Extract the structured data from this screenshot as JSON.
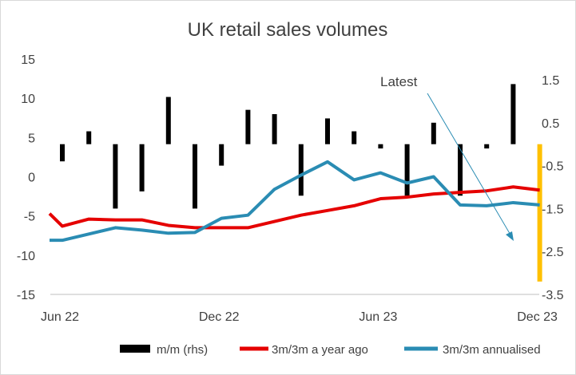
{
  "chart_data": {
    "type": "bar+line",
    "title": "UK retail sales volumes",
    "x_ticks": [
      "Jun 22",
      "Dec 22",
      "Jun 23",
      "Dec 23"
    ],
    "months": [
      "Jun 22",
      "Jul 22",
      "Aug 22",
      "Sep 22",
      "Oct 22",
      "Nov 22",
      "Dec 22",
      "Jan 23",
      "Feb 23",
      "Mar 23",
      "Apr 23",
      "May 23",
      "Jun 23",
      "Jul 23",
      "Aug 23",
      "Sep 23",
      "Oct 23",
      "Nov 23",
      "Dec 23"
    ],
    "left_axis": {
      "ylim": [
        -15,
        15
      ],
      "ticks": [
        -15,
        -10,
        -5,
        0,
        5,
        10,
        15
      ]
    },
    "right_axis": {
      "ylim": [
        -3.5,
        2.0
      ],
      "ticks": [
        -3.5,
        -2.5,
        -1.5,
        -0.5,
        0.5,
        1.5
      ]
    },
    "series": [
      {
        "name": "m/m (rhs)",
        "kind": "bar",
        "axis": "right",
        "color": "#000000",
        "values": [
          -0.4,
          0.3,
          -1.5,
          -1.1,
          1.1,
          -1.5,
          -0.5,
          0.8,
          0.7,
          -1.2,
          0.6,
          0.3,
          -0.1,
          -1.2,
          0.5,
          -1.2,
          -0.1,
          1.4,
          -3.2
        ]
      },
      {
        "name": "3m/3m a year ago",
        "kind": "line",
        "axis": "left",
        "color": "#e50000",
        "values": [
          -6.3,
          -5.4,
          -5.5,
          -5.5,
          -6.2,
          -6.5,
          -6.5,
          -6.5,
          -5.7,
          -4.9,
          -4.3,
          -3.7,
          -2.8,
          -2.6,
          -2.2,
          -2.0,
          -1.8,
          -1.3,
          -1.7
        ],
        "lead_in": -4.7
      },
      {
        "name": "3m/3m annualised",
        "kind": "line",
        "axis": "left",
        "color": "#2a8cb3",
        "values": [
          -8.1,
          -7.3,
          -6.5,
          -6.8,
          -7.2,
          -7.1,
          -5.3,
          -4.9,
          -1.6,
          0.2,
          1.9,
          -0.4,
          0.5,
          -0.8,
          0.0,
          -3.6,
          -3.7,
          -3.3,
          -3.6
        ]
      }
    ],
    "highlight": {
      "month": "Dec 23",
      "color": "#ffc000"
    },
    "annotation": {
      "text": "Latest"
    },
    "legend": {
      "position": "bottom"
    }
  }
}
